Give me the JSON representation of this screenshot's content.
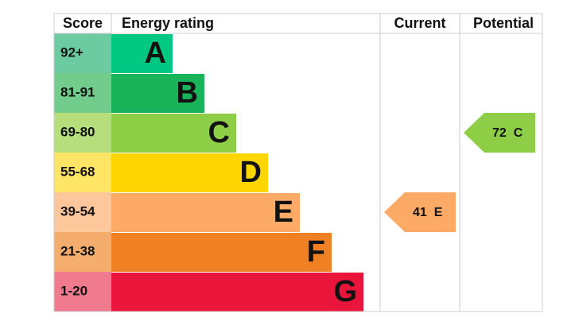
{
  "header": {
    "score": "Score",
    "rating": "Energy rating",
    "current": "Current",
    "potential": "Potential"
  },
  "bands": [
    {
      "score": "92+",
      "letter": "A",
      "color": "#00c781",
      "light": "#6ccba0"
    },
    {
      "score": "81-91",
      "letter": "B",
      "color": "#19b459",
      "light": "#72cc8c"
    },
    {
      "score": "69-80",
      "letter": "C",
      "color": "#8dce46",
      "light": "#b6de7d"
    },
    {
      "score": "55-68",
      "letter": "D",
      "color": "#ffd500",
      "light": "#ffe566"
    },
    {
      "score": "39-54",
      "letter": "E",
      "color": "#fcaa65",
      "light": "#fdc69b"
    },
    {
      "score": "21-38",
      "letter": "F",
      "color": "#ef8023",
      "light": "#f5ad6e"
    },
    {
      "score": "1-20",
      "letter": "G",
      "color": "#e9153b",
      "light": "#f07b8e"
    }
  ],
  "current": {
    "value": 41,
    "letter": "E",
    "color": "#fcaa65"
  },
  "potential": {
    "value": 72,
    "letter": "C",
    "color": "#8dce46"
  }
}
